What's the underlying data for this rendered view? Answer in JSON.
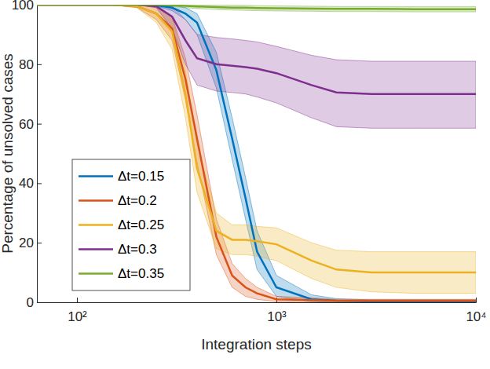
{
  "chart_data": {
    "type": "line",
    "x_label": "Integration steps",
    "y_label": "Percentage of unsolved cases",
    "log": "x",
    "legend": "lower left",
    "xlim": [
      63,
      10000
    ],
    "xticks": [
      {
        "value": 100,
        "label": "10²"
      },
      {
        "value": 1000,
        "label": "10³"
      },
      {
        "value": 10000,
        "label": "10⁴"
      }
    ],
    "ylim": [
      0,
      100
    ],
    "yticks": [
      0,
      20,
      40,
      60,
      80,
      100
    ],
    "x": [
      63,
      100,
      150,
      200,
      250,
      300,
      350,
      400,
      500,
      600,
      700,
      800,
      1000,
      1500,
      2000,
      3000,
      5000,
      10000
    ],
    "series": [
      {
        "name": "Δt=0.15",
        "color": "#0072BD",
        "values": [
          100,
          100,
          100,
          100,
          99.8,
          99,
          97,
          94,
          78,
          55,
          35,
          17,
          5,
          1,
          0.5,
          0.3,
          0.3,
          0.3
        ],
        "lower": [
          100,
          100,
          100,
          100,
          99.5,
          98,
          95,
          90,
          72,
          48,
          28,
          11,
          2,
          0.2,
          0,
          0,
          0,
          0
        ],
        "upper": [
          100,
          100,
          100,
          100,
          100,
          100,
          99,
          97,
          84,
          62,
          42,
          24,
          9,
          2.5,
          1.2,
          0.8,
          0.8,
          0.8
        ]
      },
      {
        "name": "Δt=0.2",
        "color": "#D95319",
        "values": [
          100,
          100,
          100,
          99.5,
          97,
          92,
          75,
          55,
          22,
          9,
          5,
          3,
          1,
          0.7,
          0.5,
          0.5,
          0.5,
          0.5
        ],
        "lower": [
          100,
          100,
          100,
          99,
          95,
          88,
          68,
          47,
          16,
          5,
          2,
          1,
          0.2,
          0,
          0,
          0,
          0,
          0
        ],
        "upper": [
          100,
          100,
          100,
          100,
          99,
          96,
          82,
          63,
          28,
          13,
          8,
          5,
          2,
          1.5,
          1,
          1,
          1,
          1
        ]
      },
      {
        "name": "Δt=0.25",
        "color": "#EDB120",
        "values": [
          100,
          100,
          100,
          99.5,
          97,
          91,
          70,
          45,
          24,
          21,
          21,
          20.5,
          19.5,
          14,
          11,
          10,
          10,
          10
        ],
        "lower": [
          100,
          100,
          100,
          99,
          94,
          85,
          62,
          37,
          18,
          16,
          16,
          15.5,
          14,
          8,
          5,
          3.5,
          3,
          3
        ],
        "upper": [
          100,
          100,
          100,
          100,
          99.5,
          96,
          78,
          53,
          30,
          26,
          26,
          25.5,
          25,
          20,
          17.5,
          17,
          17,
          17
        ]
      },
      {
        "name": "Δt=0.3",
        "color": "#7E2F8E",
        "values": [
          100,
          100,
          100,
          100,
          99.5,
          96,
          88,
          82,
          80,
          79.5,
          79,
          78.5,
          77,
          73,
          70.5,
          70,
          70,
          70
        ],
        "lower": [
          100,
          100,
          100,
          100,
          99,
          92,
          80,
          73,
          71,
          70.5,
          70,
          69,
          67,
          62,
          59,
          58.5,
          58.5,
          58.5
        ],
        "upper": [
          100,
          100,
          100,
          100,
          100,
          99.5,
          95,
          90,
          89,
          88.5,
          88,
          87.5,
          86,
          83,
          81.5,
          81,
          81,
          81
        ]
      },
      {
        "name": "Δt=0.35",
        "color": "#77AC30",
        "values": [
          100,
          100,
          100,
          100,
          100,
          99.8,
          99.6,
          99.4,
          99.2,
          99,
          99,
          98.9,
          98.8,
          98.7,
          98.6,
          98.6,
          98.5,
          98.5
        ],
        "lower": [
          100,
          100,
          100,
          100,
          99.8,
          99.4,
          99,
          98.7,
          98.4,
          98.2,
          98.1,
          98,
          97.9,
          97.8,
          97.7,
          97.7,
          97.6,
          97.6
        ],
        "upper": [
          100,
          100,
          100,
          100,
          100,
          100,
          100,
          100,
          100,
          99.8,
          99.8,
          99.7,
          99.6,
          99.5,
          99.4,
          99.4,
          99.4,
          99.4
        ]
      }
    ]
  }
}
